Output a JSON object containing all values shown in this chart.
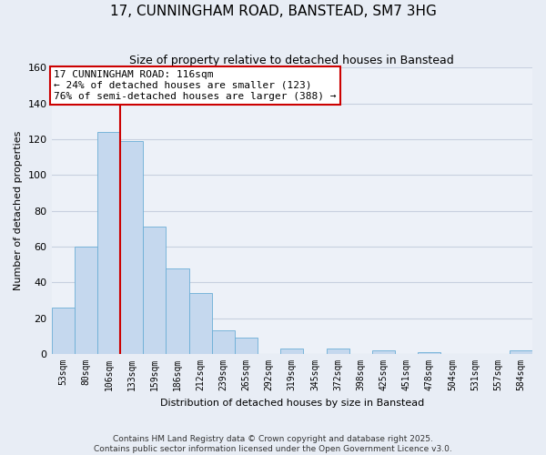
{
  "title": "17, CUNNINGHAM ROAD, BANSTEAD, SM7 3HG",
  "subtitle": "Size of property relative to detached houses in Banstead",
  "xlabel": "Distribution of detached houses by size in Banstead",
  "ylabel": "Number of detached properties",
  "bar_labels": [
    "53sqm",
    "80sqm",
    "106sqm",
    "133sqm",
    "159sqm",
    "186sqm",
    "212sqm",
    "239sqm",
    "265sqm",
    "292sqm",
    "319sqm",
    "345sqm",
    "372sqm",
    "398sqm",
    "425sqm",
    "451sqm",
    "478sqm",
    "504sqm",
    "531sqm",
    "557sqm",
    "584sqm"
  ],
  "bar_values": [
    26,
    60,
    124,
    119,
    71,
    48,
    34,
    13,
    9,
    0,
    3,
    0,
    3,
    0,
    2,
    0,
    1,
    0,
    0,
    0,
    2
  ],
  "bar_color": "#c5d8ee",
  "bar_edge_color": "#6baed6",
  "vline_x_index": 2,
  "vline_color": "#cc0000",
  "ylim": [
    0,
    160
  ],
  "yticks": [
    0,
    20,
    40,
    60,
    80,
    100,
    120,
    140,
    160
  ],
  "annotation_title": "17 CUNNINGHAM ROAD: 116sqm",
  "annotation_line1": "← 24% of detached houses are smaller (123)",
  "annotation_line2": "76% of semi-detached houses are larger (388) →",
  "footer1": "Contains HM Land Registry data © Crown copyright and database right 2025.",
  "footer2": "Contains public sector information licensed under the Open Government Licence v3.0.",
  "bg_color": "#e8edf5",
  "plot_bg_color": "#edf1f8",
  "grid_color": "#c8d0df",
  "title_fontsize": 11,
  "subtitle_fontsize": 9,
  "ylabel_fontsize": 8,
  "xlabel_fontsize": 8,
  "tick_fontsize": 8,
  "annot_fontsize": 8,
  "footer_fontsize": 6.5
}
